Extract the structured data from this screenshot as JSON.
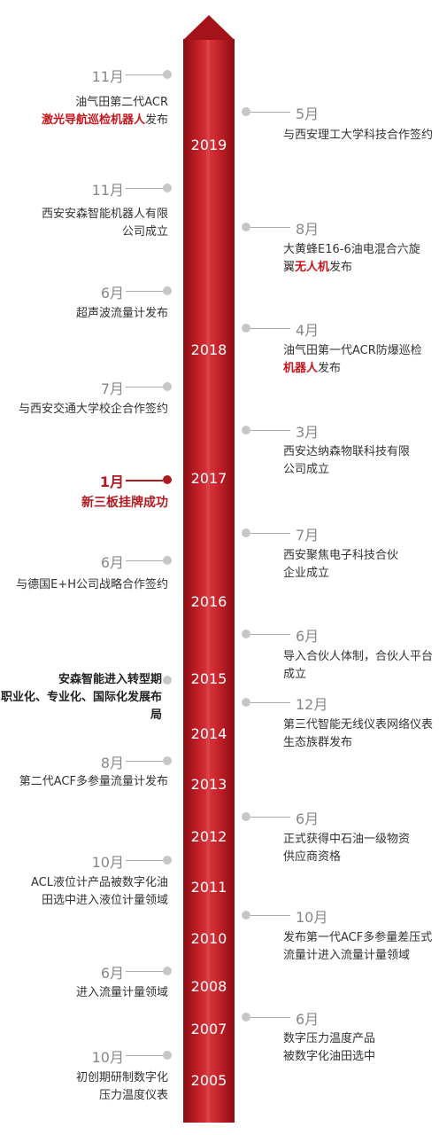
{
  "years": [
    "2019",
    "2018",
    "2017",
    "2016",
    "2015",
    "2014",
    "2013",
    "2012",
    "2011",
    "2010",
    "2008",
    "2007",
    "2005"
  ],
  "left_events": [
    {
      "month": "11月",
      "lines": [
        [
          "油气田第二代ACR"
        ],
        [
          "激光导航巡检机器人",
          "发布"
        ]
      ]
    },
    {
      "month": "11月",
      "lines": [
        [
          "西安安森智能机器人有限"
        ],
        [
          "公司成立"
        ]
      ]
    },
    {
      "month": "6月",
      "lines": [
        [
          "超声波流量计发布"
        ]
      ]
    },
    {
      "month": "7月",
      "lines": [
        [
          "与西安交通大学校企合作签约"
        ]
      ]
    },
    {
      "month": "1月",
      "lines": [
        [
          "新三板挂牌成功"
        ]
      ]
    },
    {
      "month": "6月",
      "lines": [
        [
          "与德国E+H公司战略合作签约"
        ]
      ]
    },
    {
      "month": "",
      "lines": [
        [
          "安森智能进入转型期"
        ],
        [
          "职业化、专业化、国际化发展布局"
        ]
      ]
    },
    {
      "month": "8月",
      "lines": [
        [
          "第二代ACF多参量流量计发布"
        ]
      ]
    },
    {
      "month": "10月",
      "lines": [
        [
          "ACL液位计产品被数字化油"
        ],
        [
          "田选中进入液位计量领域"
        ]
      ]
    },
    {
      "month": "6月",
      "lines": [
        [
          "进入流量计量领域"
        ]
      ]
    },
    {
      "month": "10月",
      "lines": [
        [
          "初创期研制数字化"
        ],
        [
          "压力温度仪表"
        ]
      ]
    }
  ],
  "right_events": [
    {
      "month": "5月",
      "lines": [
        [
          "与西安理工大学科技合作签约"
        ]
      ]
    },
    {
      "month": "8月",
      "lines": [
        [
          "大黄蜂E16-6油电混合六旋"
        ],
        [
          "翼",
          "无人机",
          "发布"
        ]
      ]
    },
    {
      "month": "4月",
      "lines": [
        [
          "油气田第一代ACR防爆巡检"
        ],
        [
          "机器人",
          "发布"
        ]
      ]
    },
    {
      "month": "3月",
      "lines": [
        [
          "西安达纳森物联科技有限"
        ],
        [
          "公司成立"
        ]
      ]
    },
    {
      "month": "7月",
      "lines": [
        [
          "西安聚焦电子科技合伙"
        ],
        [
          "企业成立"
        ]
      ]
    },
    {
      "month": "6月",
      "lines": [
        [
          "导入合伙人体制，合伙人平台"
        ],
        [
          "成立"
        ]
      ]
    },
    {
      "month": "12月",
      "lines": [
        [
          "第三代智能无线仪表网络仪表"
        ],
        [
          "生态族群发布"
        ]
      ]
    },
    {
      "month": "6月",
      "lines": [
        [
          "正式获得中石油一级物资"
        ],
        [
          "供应商资格"
        ]
      ]
    },
    {
      "month": "10月",
      "lines": [
        [
          "发布第一代ACF多参量差压式"
        ],
        [
          "流量计进入流量计量领域"
        ]
      ]
    },
    {
      "month": "6月",
      "lines": [
        [
          "数字压力温度产品"
        ],
        [
          "被数字化油田选中"
        ]
      ]
    }
  ],
  "colors": {
    "accent": "#b01b22",
    "shaft": "#c42028",
    "dot": "#c7c7c7"
  }
}
